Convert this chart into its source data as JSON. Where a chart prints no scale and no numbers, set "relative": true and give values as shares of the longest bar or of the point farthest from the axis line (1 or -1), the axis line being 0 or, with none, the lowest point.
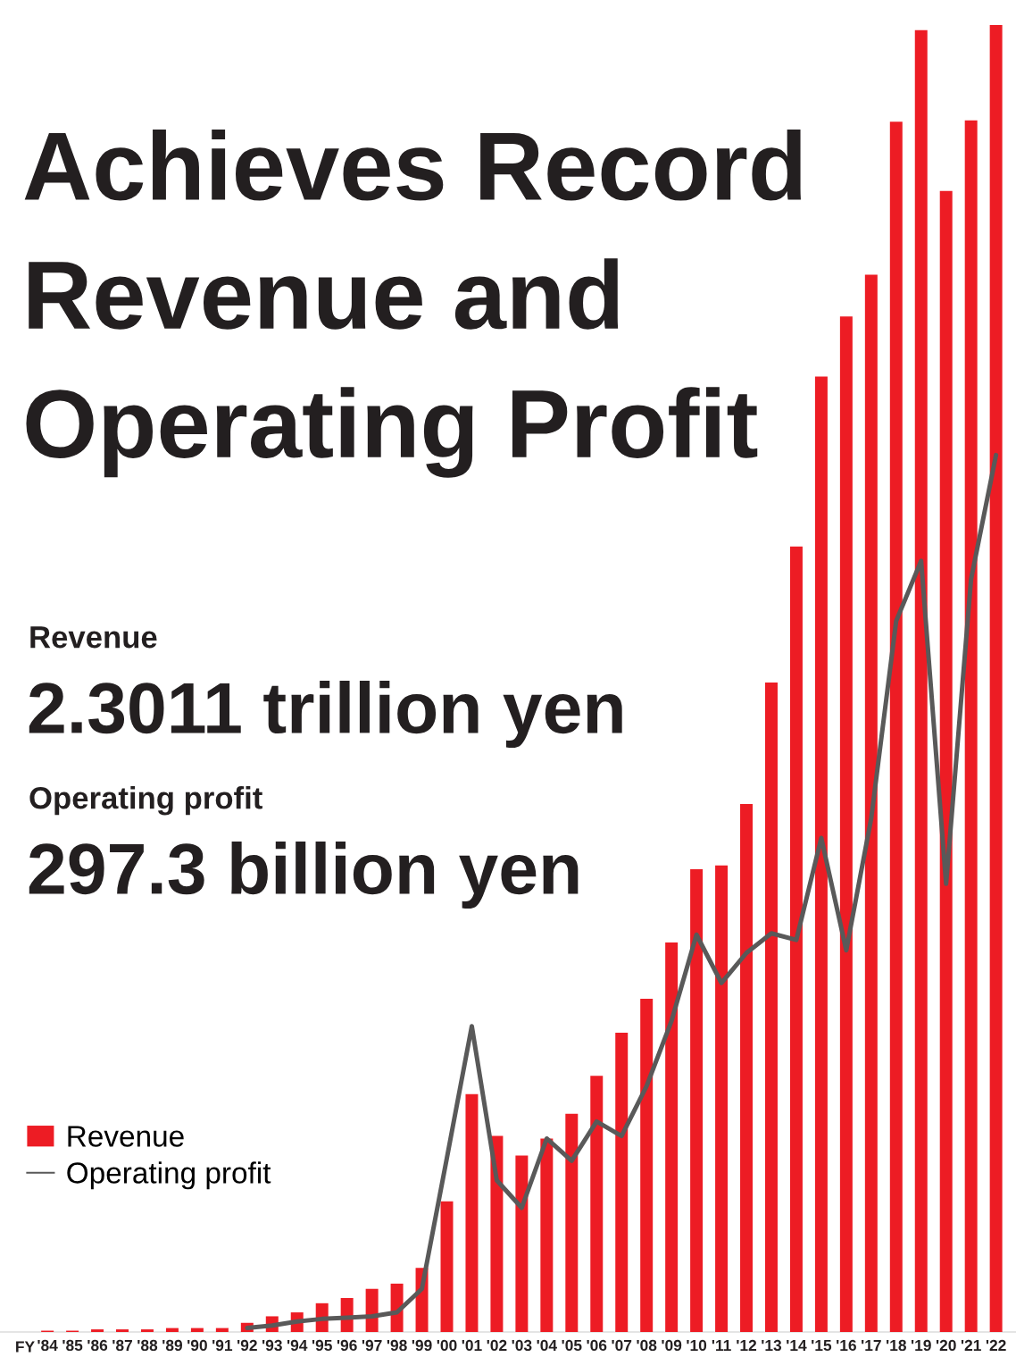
{
  "chart_data": {
    "type": "bar",
    "title": "Achieves Record Revenue and Operating Profit",
    "xlabel": "FY",
    "annotations": [
      "Revenue",
      "2.3011 trillion yen",
      "Operating profit",
      "297.3 billion yen"
    ],
    "categories": [
      "'84",
      "'85",
      "'86",
      "'87",
      "'88",
      "'89",
      "'90",
      "'91",
      "'92",
      "'93",
      "'94",
      "'95",
      "'96",
      "'97",
      "'98",
      "'99",
      "'00",
      "'01",
      "'02",
      "'03",
      "'04",
      "'05",
      "'06",
      "'07",
      "'08",
      "'09",
      "'10",
      "'11",
      "'12",
      "'13",
      "'14",
      "'15",
      "'16",
      "'17",
      "'18",
      "'19",
      "'20",
      "'21",
      "'22"
    ],
    "relative": true,
    "series": [
      {
        "name": "Revenue",
        "color": "#ed1c24",
        "values": [
          0.001,
          0.001,
          0.002,
          0.002,
          0.002,
          0.003,
          0.003,
          0.003,
          0.007,
          0.012,
          0.015,
          0.022,
          0.026,
          0.033,
          0.037,
          0.049,
          0.1,
          0.182,
          0.15,
          0.135,
          0.148,
          0.167,
          0.196,
          0.229,
          0.255,
          0.298,
          0.354,
          0.357,
          0.404,
          0.497,
          0.601,
          0.731,
          0.777,
          0.809,
          0.926,
          0.996,
          0.873,
          0.927,
          1.0
        ]
      },
      {
        "name": "Operating profit",
        "type": "line",
        "color": "#595959",
        "values": [
          null,
          null,
          null,
          null,
          null,
          null,
          null,
          null,
          0.003,
          0.005,
          0.008,
          0.01,
          0.011,
          0.012,
          0.015,
          0.033,
          0.133,
          0.234,
          0.116,
          0.095,
          0.148,
          0.131,
          0.161,
          0.15,
          0.188,
          0.238,
          0.304,
          0.267,
          0.29,
          0.305,
          0.3,
          0.378,
          0.292,
          0.393,
          0.544,
          0.59,
          0.343,
          0.576,
          0.671
        ]
      }
    ],
    "legend": "bottom left",
    "marker": "none",
    "line_style": "solid",
    "grid": false
  }
}
